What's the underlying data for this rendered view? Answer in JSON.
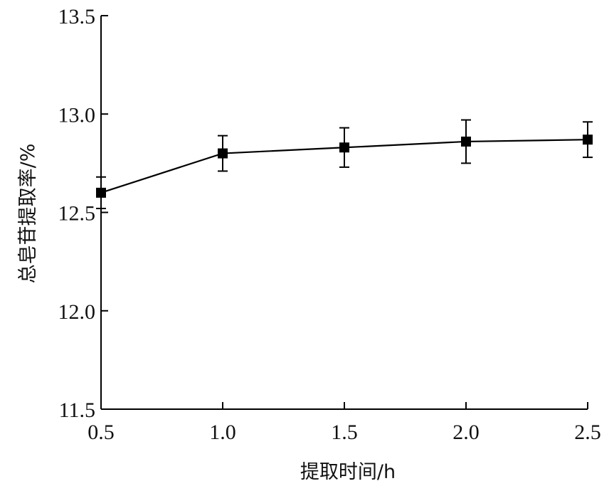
{
  "chart_data": {
    "type": "line",
    "title": "",
    "xlabel": "提取时间/h",
    "ylabel": "总皂苷提取率/%",
    "xlim": [
      0.5,
      2.5
    ],
    "ylim": [
      11.5,
      13.5
    ],
    "x_ticks": [
      "0.5",
      "1.0",
      "1.5",
      "2.0",
      "2.5"
    ],
    "y_ticks": [
      "11.5",
      "12.0",
      "12.5",
      "13.0",
      "13.5"
    ],
    "grid": false,
    "legend": "none",
    "series": [
      {
        "x": [
          0.5,
          1.0,
          1.5,
          2.0,
          2.5
        ],
        "values": [
          12.6,
          12.8,
          12.83,
          12.86,
          12.87
        ],
        "error": [
          0.08,
          0.09,
          0.1,
          0.11,
          0.09
        ],
        "color": "#000000",
        "marker": "square"
      }
    ]
  }
}
